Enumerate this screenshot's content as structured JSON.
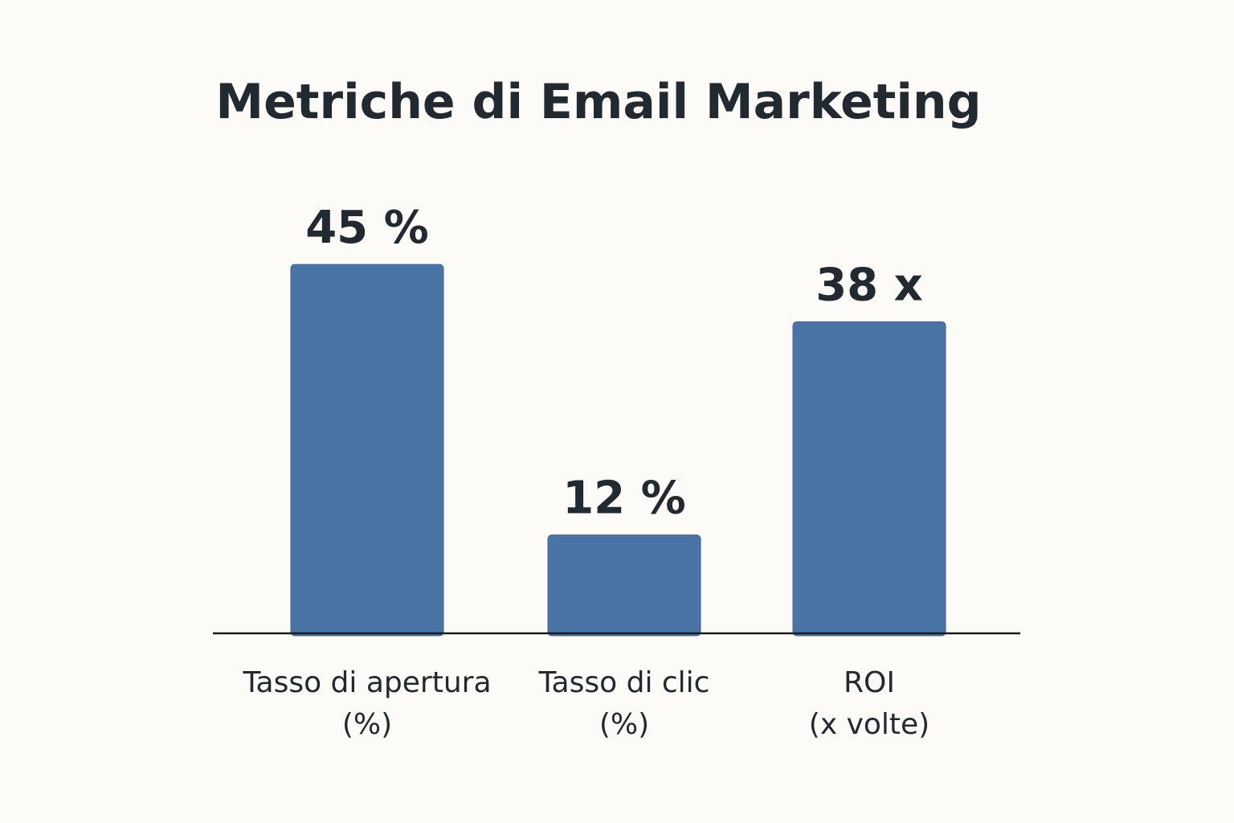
{
  "chart_data": {
    "type": "bar",
    "title": "Metriche di Email Marketing",
    "xlabel": "",
    "ylabel": "",
    "categories": [
      [
        "Tasso di apertura",
        "(%)"
      ],
      [
        "Tasso di clic",
        "(%)"
      ],
      [
        "ROI",
        "(x volte)"
      ]
    ],
    "values": [
      45,
      12,
      38
    ],
    "value_labels": [
      "45 %",
      "12 %",
      "38 x"
    ],
    "ylim": [
      0,
      50
    ],
    "grid": false,
    "legend": "none",
    "colors": {
      "bar": "#4a73a6",
      "bar_stroke": "#3f6496",
      "axis": "#1c1c1c",
      "text": "#222a31",
      "background": "#fcfbf7"
    }
  }
}
